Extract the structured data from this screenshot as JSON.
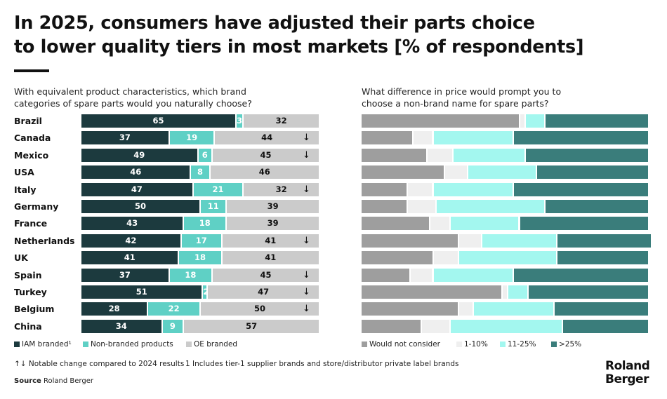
{
  "title": [
    "In 2025, consumers have adjusted their parts choice",
    "to lower quality tiers in most markets [% of respondents]"
  ],
  "colors": {
    "iam": "#1c3a3e",
    "non_branded": "#5fd0c5",
    "oe": "#cbcbcb",
    "would_not": "#9e9e9e",
    "p1_10": "#efefef",
    "p11_25": "#a3f7ef",
    "p25": "#3a7d7b"
  },
  "chart_data": [
    {
      "type": "bar",
      "orientation": "horizontal",
      "stacked": true,
      "title": "With equivalent product characteristics, which brand categories of spare parts would you naturally choose?",
      "categories": [
        "Brazil",
        "Canada",
        "Mexico",
        "USA",
        "Italy",
        "Germany",
        "France",
        "Netherlands",
        "UK",
        "Spain",
        "Turkey",
        "Belgium",
        "China"
      ],
      "series": [
        {
          "name": "IAM branded¹",
          "values": [
            65,
            37,
            49,
            46,
            47,
            50,
            43,
            42,
            41,
            37,
            51,
            28,
            34
          ]
        },
        {
          "name": "Non-branded products",
          "values": [
            3,
            19,
            6,
            8,
            21,
            11,
            18,
            17,
            18,
            18,
            2,
            22,
            9
          ]
        },
        {
          "name": "OE branded",
          "values": [
            32,
            44,
            45,
            46,
            32,
            39,
            39,
            41,
            41,
            45,
            47,
            50,
            57
          ]
        }
      ],
      "notable_change": [
        "",
        "↓",
        "↓",
        "",
        "↓",
        "",
        "",
        "↓",
        "",
        "↓",
        "↓",
        "↓",
        ""
      ],
      "xlim": [
        0,
        100
      ],
      "legend": "bottom"
    },
    {
      "type": "bar",
      "orientation": "horizontal",
      "stacked": true,
      "title": "What difference in price would prompt you to choose a non-brand name for spare parts?",
      "categories": [
        "Brazil",
        "Canada",
        "Mexico",
        "USA",
        "Italy",
        "Germany",
        "France",
        "Netherlands",
        "UK",
        "Spain",
        "Turkey",
        "Belgium",
        "China"
      ],
      "series": [
        {
          "name": "Would not consider",
          "values": [
            55,
            18,
            23,
            29,
            16,
            16,
            24,
            34,
            25,
            17,
            49,
            34,
            21
          ]
        },
        {
          "name": "1-10%",
          "values": [
            2,
            7,
            9,
            8,
            9,
            10,
            7,
            8,
            9,
            8,
            2,
            5,
            10
          ]
        },
        {
          "name": "11-25%",
          "values": [
            7,
            28,
            25,
            24,
            28,
            38,
            24,
            26,
            34,
            28,
            7,
            28,
            39
          ]
        },
        {
          "name": ">25%",
          "values": [
            36,
            47,
            43,
            39,
            47,
            36,
            45,
            33,
            32,
            47,
            42,
            33,
            30
          ]
        }
      ],
      "xlim": [
        0,
        100
      ],
      "legend": "bottom"
    }
  ],
  "footnote_arrow": "↑↓ Notable change compared to 2024 results",
  "footnote_1": "1 Includes tier-1 supplier brands and store/distributor private label brands",
  "source_label": "Source",
  "source": "Roland Berger",
  "logo": [
    "Roland",
    "Berger"
  ]
}
